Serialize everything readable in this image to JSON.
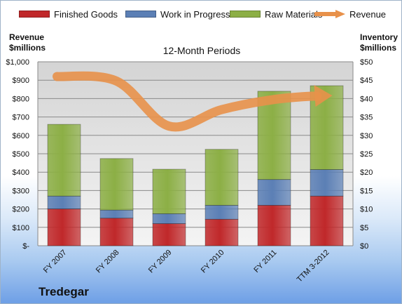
{
  "company": "Tredegar",
  "chart_data": {
    "type": "bar",
    "stacked": true,
    "title": "12-Month Periods",
    "categories": [
      "FY 2007",
      "FY 2008",
      "FY 2009",
      "FY 2010",
      "FY 2011",
      "TTM 3-2012"
    ],
    "series": [
      {
        "name": "Finished Goods",
        "color": "#c0282a",
        "axis": "right",
        "values": [
          10,
          7.5,
          6,
          7.2,
          11,
          13.5
        ]
      },
      {
        "name": "Work in Progress",
        "color": "#5b7fb5",
        "axis": "right",
        "values": [
          3.5,
          2.2,
          2.7,
          3.8,
          7,
          7.2
        ]
      },
      {
        "name": "Raw Materials",
        "color": "#8caf45",
        "axis": "right",
        "values": [
          19.5,
          14,
          12.1,
          15.2,
          24,
          22.8
        ]
      },
      {
        "name": "Revenue",
        "color": "#e8914a",
        "axis": "left",
        "type": "line",
        "values": [
          920,
          895,
          650,
          740,
          795,
          820
        ]
      }
    ],
    "left_axis": {
      "title_lines": [
        "Revenue",
        "$millions"
      ],
      "ticks": [
        "$1,000",
        "$900",
        "$800",
        "$700",
        "$600",
        "$500",
        "$400",
        "$300",
        "$200",
        "$100",
        "$-"
      ],
      "ylim": [
        0,
        1000
      ]
    },
    "right_axis": {
      "title_lines": [
        "Inventory",
        "$millions"
      ],
      "ticks": [
        "$50",
        "$45",
        "$40",
        "$35",
        "$30",
        "$25",
        "$20",
        "$15",
        "$10",
        "$5",
        "$0"
      ],
      "ylim": [
        0,
        50
      ]
    },
    "grid": true,
    "legend": "top"
  }
}
